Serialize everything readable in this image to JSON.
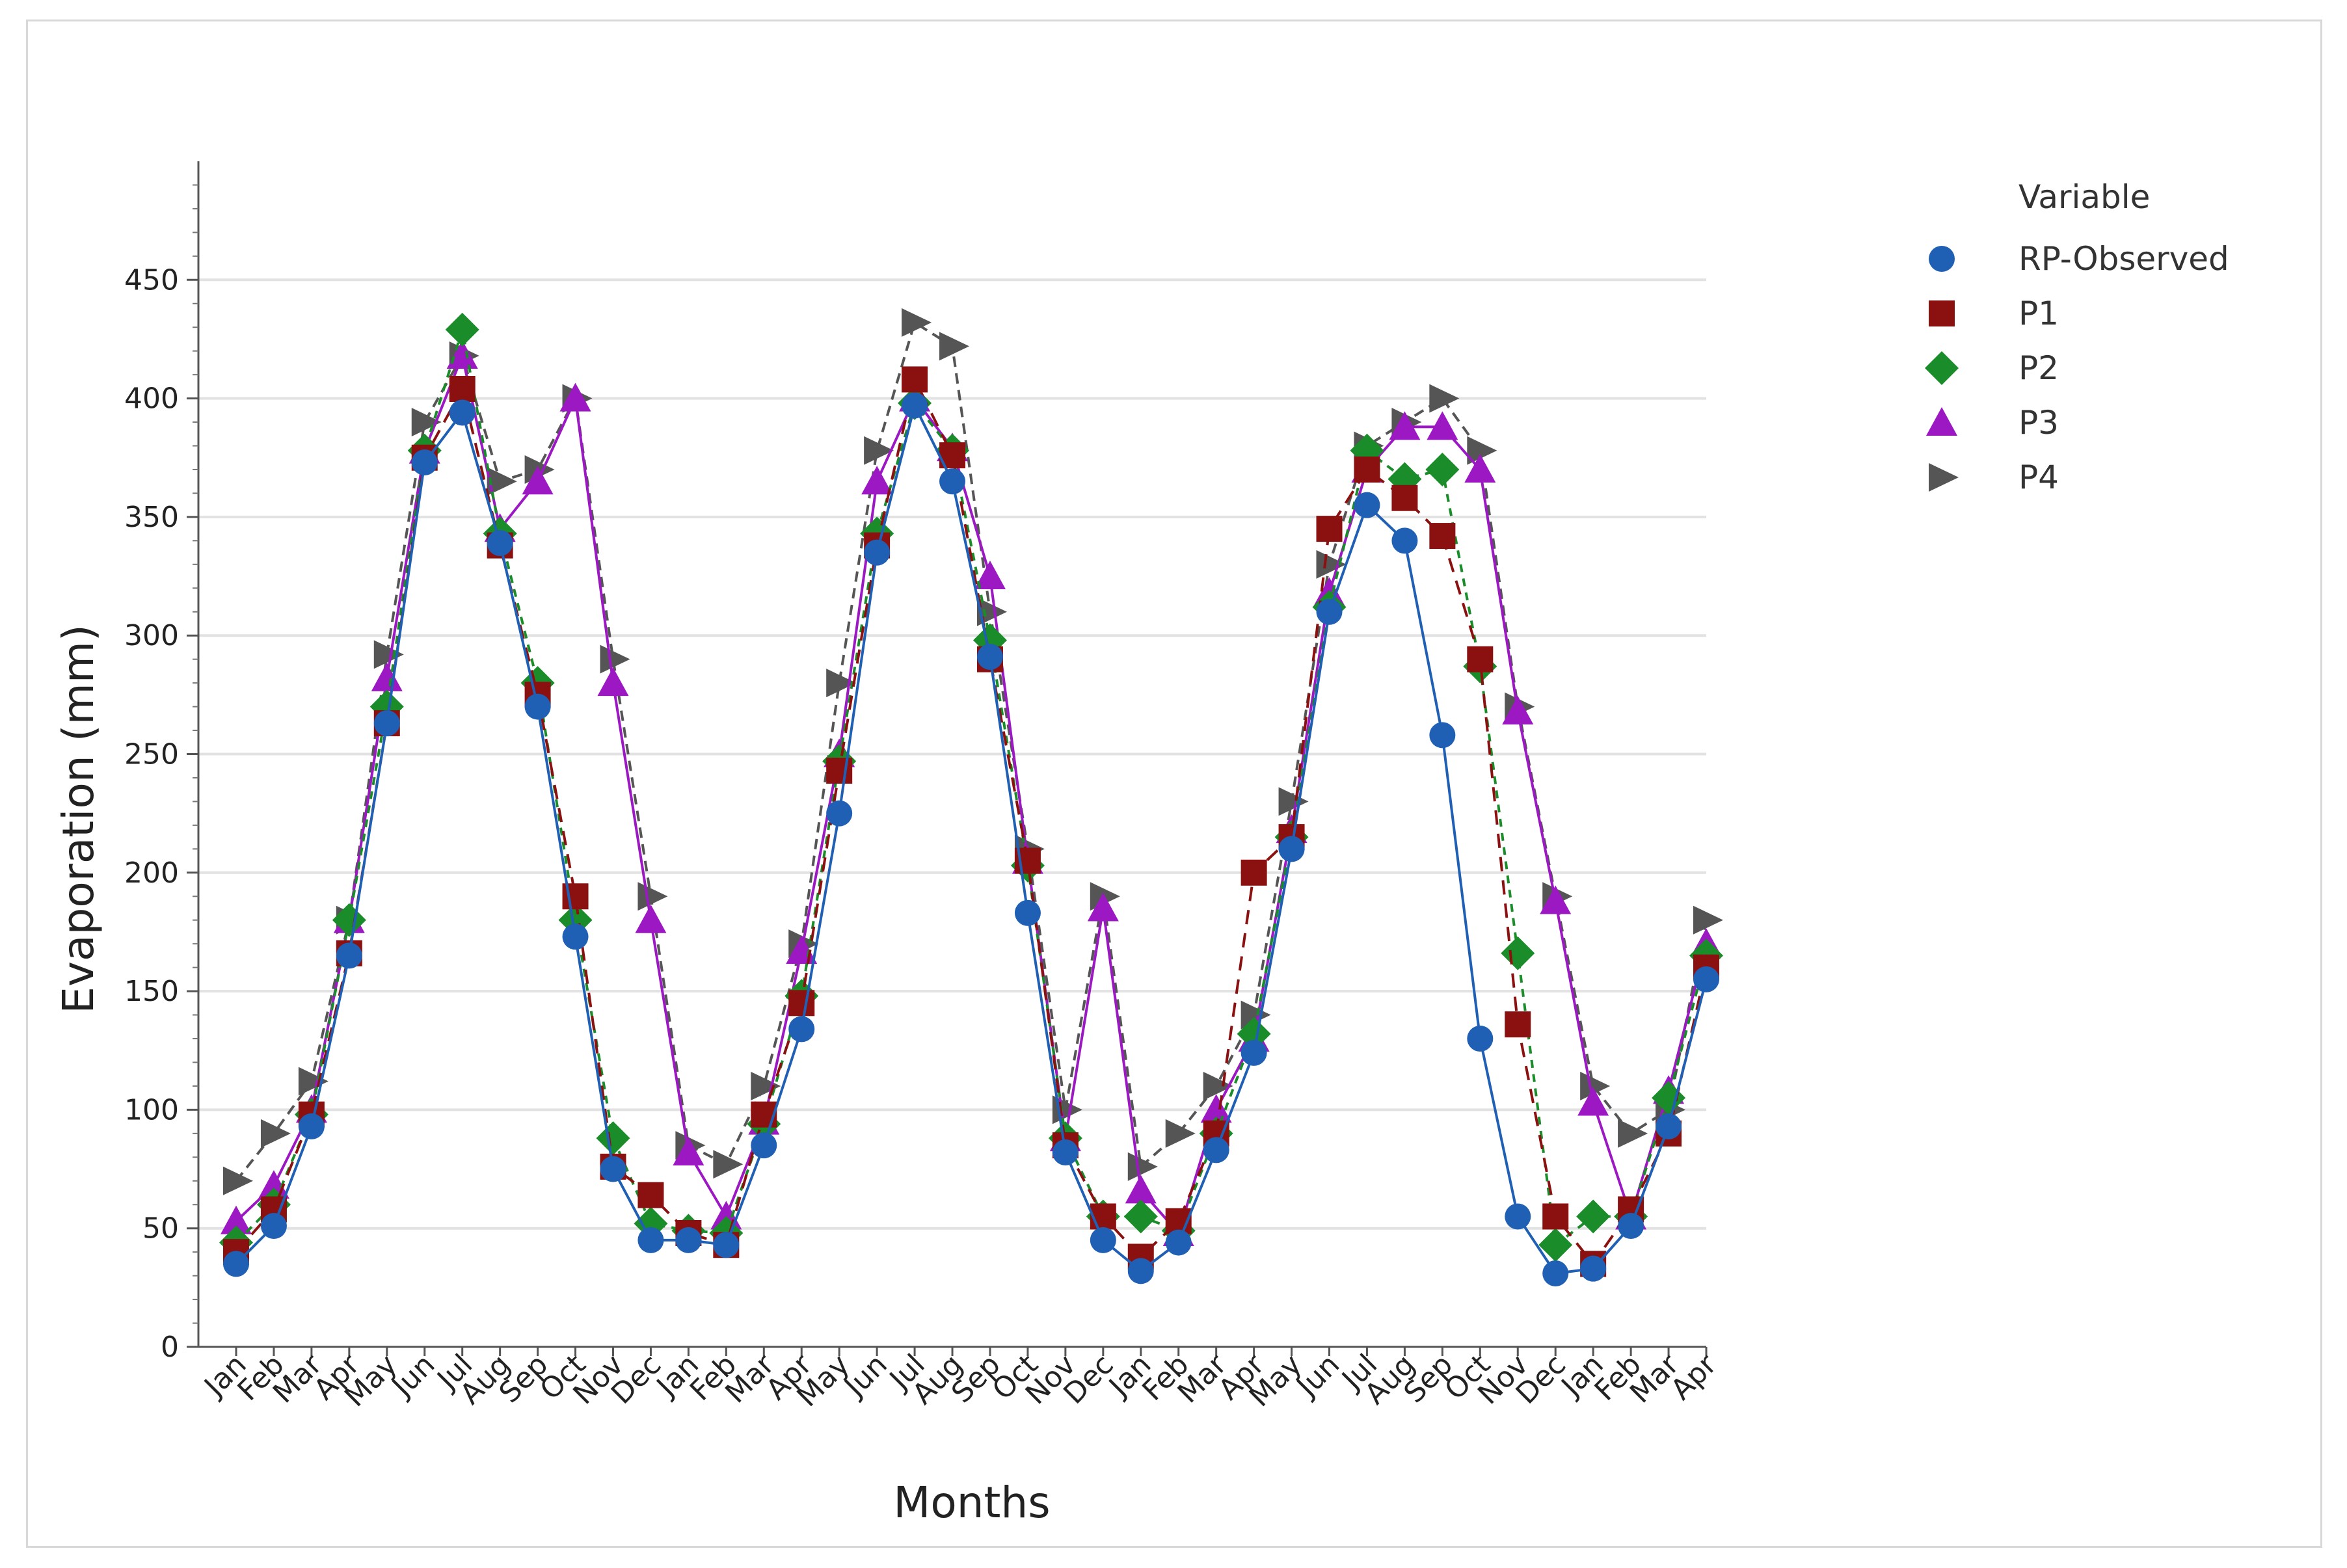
{
  "chart_data": {
    "type": "line",
    "xlabel": "Months",
    "ylabel": "Evaporation (mm)",
    "ylim": [
      0,
      500
    ],
    "yticks": [
      0,
      50,
      100,
      150,
      200,
      250,
      300,
      350,
      400,
      450
    ],
    "grid": "horizontal",
    "legend_title": "Variable",
    "legend_position": "top-right",
    "categories": [
      "Jan",
      "Feb",
      "Mar",
      "Apr",
      "May",
      "Jun",
      "Jul",
      "Aug",
      "Sep",
      "Oct",
      "Nov",
      "Dec",
      "Jan",
      "Feb",
      "Mar",
      "Apr",
      "May",
      "Jun",
      "Jul",
      "Aug",
      "Sep",
      "Oct",
      "Nov",
      "Dec",
      "Jan",
      "Feb",
      "Mar",
      "Apr",
      "May",
      "Jun",
      "Jul",
      "Aug",
      "Sep",
      "Oct",
      "Nov",
      "Dec",
      "Jan",
      "Feb",
      "Mar",
      "Apr"
    ],
    "series": [
      {
        "name": "RP-Observed",
        "color": "#1f5fb4",
        "marker": "circle",
        "dash": "",
        "values": [
          35,
          51,
          93,
          165,
          263,
          373,
          394,
          339,
          270,
          173,
          75,
          45,
          45,
          43,
          85,
          134,
          225,
          335,
          397,
          365,
          291,
          183,
          82,
          45,
          32,
          44,
          83,
          124,
          210,
          310,
          355,
          340,
          258,
          130,
          55,
          31,
          33,
          51,
          93,
          155
        ]
      },
      {
        "name": "P1",
        "color": "#8b1010",
        "marker": "square",
        "dash": "22,14",
        "values": [
          40,
          58,
          98,
          166,
          263,
          375,
          404,
          338,
          275,
          190,
          76,
          64,
          48,
          43,
          98,
          145,
          243,
          338,
          408,
          376,
          290,
          205,
          85,
          55,
          38,
          53,
          90,
          200,
          215,
          345,
          370,
          358,
          342,
          290,
          136,
          55,
          35,
          58,
          90,
          160
        ]
      },
      {
        "name": "P2",
        "color": "#1a8c2a",
        "marker": "diamond",
        "dash": "12,10",
        "values": [
          44,
          60,
          98,
          180,
          270,
          378,
          429,
          343,
          280,
          180,
          88,
          52,
          49,
          48,
          94,
          148,
          247,
          343,
          398,
          378,
          298,
          203,
          88,
          55,
          55,
          49,
          90,
          132,
          215,
          312,
          378,
          366,
          370,
          287,
          166,
          43,
          55,
          55,
          105,
          165
        ]
      },
      {
        "name": "P3",
        "color": "#9b18c2",
        "marker": "triangle",
        "dash": "",
        "values": [
          53,
          68,
          100,
          180,
          282,
          378,
          418,
          345,
          365,
          400,
          280,
          180,
          82,
          55,
          95,
          167,
          250,
          365,
          400,
          379,
          325,
          205,
          88,
          185,
          66,
          48,
          100,
          130,
          218,
          318,
          370,
          388,
          388,
          370,
          268,
          188,
          103,
          55,
          108,
          170
        ]
      },
      {
        "name": "P4",
        "color": "#555555",
        "marker": "arrow-right",
        "dash": "16,10",
        "values": [
          70,
          90,
          112,
          180,
          292,
          390,
          418,
          365,
          370,
          400,
          290,
          190,
          85,
          77,
          110,
          170,
          280,
          378,
          432,
          422,
          310,
          210,
          100,
          190,
          76,
          90,
          110,
          140,
          230,
          330,
          380,
          390,
          400,
          378,
          270,
          190,
          110,
          90,
          100,
          180
        ]
      }
    ]
  }
}
